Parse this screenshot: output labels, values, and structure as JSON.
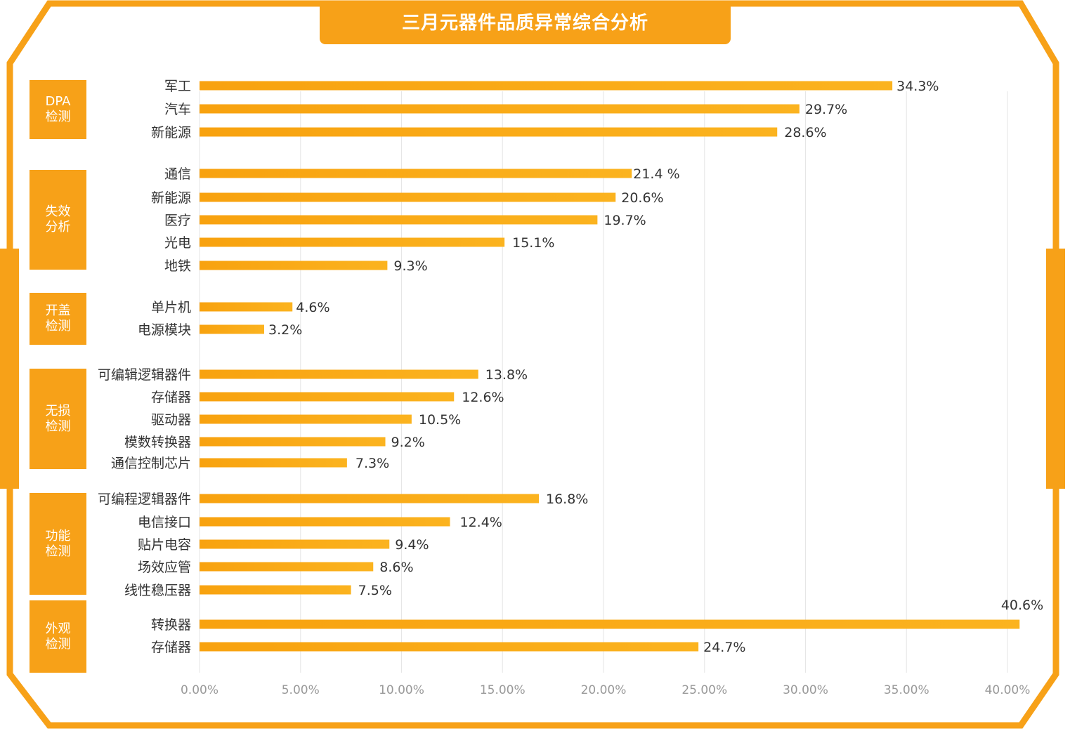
{
  "title": "三月元器件品质异常综合分析",
  "colors": {
    "accent": "#f7a118",
    "bar_start": "#f8a20f",
    "bar_end": "#fbb31f",
    "grid": "#e6e6e6",
    "tick": "#999999",
    "label": "#333333"
  },
  "groups": [
    {
      "name": "DPA\n检测"
    },
    {
      "name": "失效\n分析"
    },
    {
      "name": "开盖\n检测"
    },
    {
      "name": "无损\n检测"
    },
    {
      "name": "功能\n检测"
    },
    {
      "name": "外观\n检测"
    }
  ],
  "chart_data": {
    "type": "bar",
    "orientation": "horizontal",
    "title": "三月元器件品质异常综合分析",
    "xlim": [
      0,
      40
    ],
    "x_ticks": [
      "0.00%",
      "5.00%",
      "10.00%",
      "15.00%",
      "20.00%",
      "25.00%",
      "30.00%",
      "35.00%",
      "40.00%"
    ],
    "grid": true,
    "categories": [
      "军工",
      "汽车",
      "新能源",
      "通信",
      "新能源",
      "医疗",
      "光电",
      "地铁",
      "单片机",
      "电源模块",
      "可编辑逻辑器件",
      "存储器",
      "驱动器",
      "模数转换器",
      "通信控制芯片",
      "可编程逻辑器件",
      "电信接口",
      "贴片电容",
      "场效应管",
      "线性稳压器",
      "转换器",
      "存储器"
    ],
    "values": [
      34.3,
      29.7,
      28.6,
      21.4,
      20.6,
      19.7,
      15.1,
      9.3,
      4.6,
      3.2,
      13.8,
      12.6,
      10.5,
      9.2,
      7.3,
      16.8,
      12.4,
      9.4,
      8.6,
      7.5,
      40.6,
      24.7
    ],
    "value_labels": [
      "34.3%",
      "29.7%",
      "28.6%",
      "21.4 %",
      "20.6%",
      "19.7%",
      "15.1%",
      "9.3%",
      "4.6%",
      "3.2%",
      "13.8%",
      "12.6%",
      "10.5%",
      "9.2%",
      "7.3%",
      "16.8%",
      "12.4%",
      "9.4%",
      "8.6%",
      "7.5%",
      "40.6%",
      "24.7%"
    ],
    "category_groups": [
      "DPA\n检测",
      "DPA\n检测",
      "DPA\n检测",
      "失效\n分析",
      "失效\n分析",
      "失效\n分析",
      "失效\n分析",
      "失效\n分析",
      "开盖\n检测",
      "开盖\n检测",
      "无损\n检测",
      "无损\n检测",
      "无损\n检测",
      "无损\n检测",
      "无损\n检测",
      "功能\n检测",
      "功能\n检测",
      "功能\n检测",
      "功能\n检测",
      "功能\n检测",
      "外观\n检测",
      "外观\n检测"
    ]
  }
}
